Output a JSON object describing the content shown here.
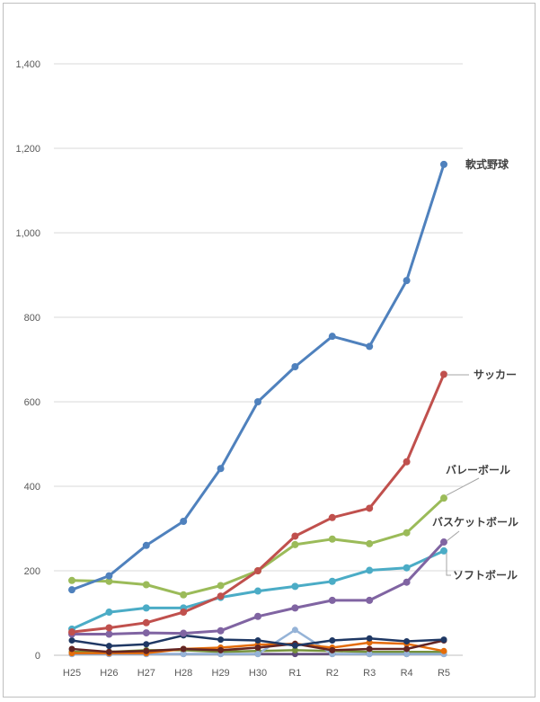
{
  "chart_data": {
    "type": "line",
    "categories": [
      "H25",
      "H26",
      "H27",
      "H28",
      "H29",
      "H30",
      "R1",
      "R2",
      "R3",
      "R4",
      "R5"
    ],
    "ylim": [
      0,
      1400
    ],
    "yticks": [
      0,
      200,
      400,
      600,
      800,
      1000,
      1200,
      1400
    ],
    "ytick_labels": [
      "0",
      "200",
      "400",
      "600",
      "800",
      "1,000",
      "1,200",
      "1,400"
    ],
    "grid": true,
    "series": [
      {
        "name": "軟式野球",
        "color": "#4F81BD",
        "values": [
          155,
          188,
          260,
          317,
          442,
          600,
          683,
          755,
          731,
          887,
          1162
        ]
      },
      {
        "name": "サッカー",
        "color": "#C0504D",
        "values": [
          55,
          65,
          77,
          102,
          140,
          200,
          282,
          326,
          348,
          458,
          665
        ]
      },
      {
        "name": "バレーボール",
        "color": "#9BBB59",
        "values": [
          177,
          175,
          167,
          143,
          165,
          200,
          262,
          275,
          264,
          290,
          372
        ]
      },
      {
        "name": "バスケットボール",
        "color": "#8064A2",
        "values": [
          50,
          50,
          53,
          52,
          58,
          92,
          112,
          130,
          130,
          173,
          268
        ]
      },
      {
        "name": "ソフトボール",
        "color": "#4BACC6",
        "values": [
          62,
          102,
          112,
          112,
          137,
          152,
          163,
          175,
          201,
          207,
          247
        ]
      },
      {
        "name": "",
        "color": "#1F3864",
        "values": [
          35,
          22,
          26,
          47,
          37,
          35,
          23,
          35,
          40,
          33,
          37
        ]
      },
      {
        "name": "",
        "color": "#632523",
        "values": [
          15,
          8,
          10,
          15,
          12,
          18,
          27,
          12,
          15,
          15,
          35
        ]
      },
      {
        "name": "",
        "color": "#E46C0A",
        "values": [
          5,
          5,
          5,
          15,
          18,
          25,
          27,
          18,
          30,
          27,
          10
        ]
      },
      {
        "name": "",
        "color": "#95B3D7",
        "values": [
          3,
          3,
          3,
          3,
          3,
          3,
          60,
          3,
          3,
          3,
          3
        ]
      },
      {
        "name": "",
        "color": "#76923C",
        "values": [
          8,
          8,
          12,
          12,
          8,
          10,
          12,
          10,
          8,
          8,
          8
        ]
      },
      {
        "name": "",
        "color": "#5F497A",
        "values": [
          3,
          3,
          3,
          3,
          3,
          3,
          3,
          3,
          3,
          3,
          3
        ]
      }
    ],
    "labeled_series": [
      {
        "series": 0,
        "text": "軟式野球"
      },
      {
        "series": 1,
        "text": "サッカー"
      },
      {
        "series": 2,
        "text": "バレーボール"
      },
      {
        "series": 3,
        "text": "バスケットボール"
      },
      {
        "series": 4,
        "text": "ソフトボール"
      }
    ]
  }
}
